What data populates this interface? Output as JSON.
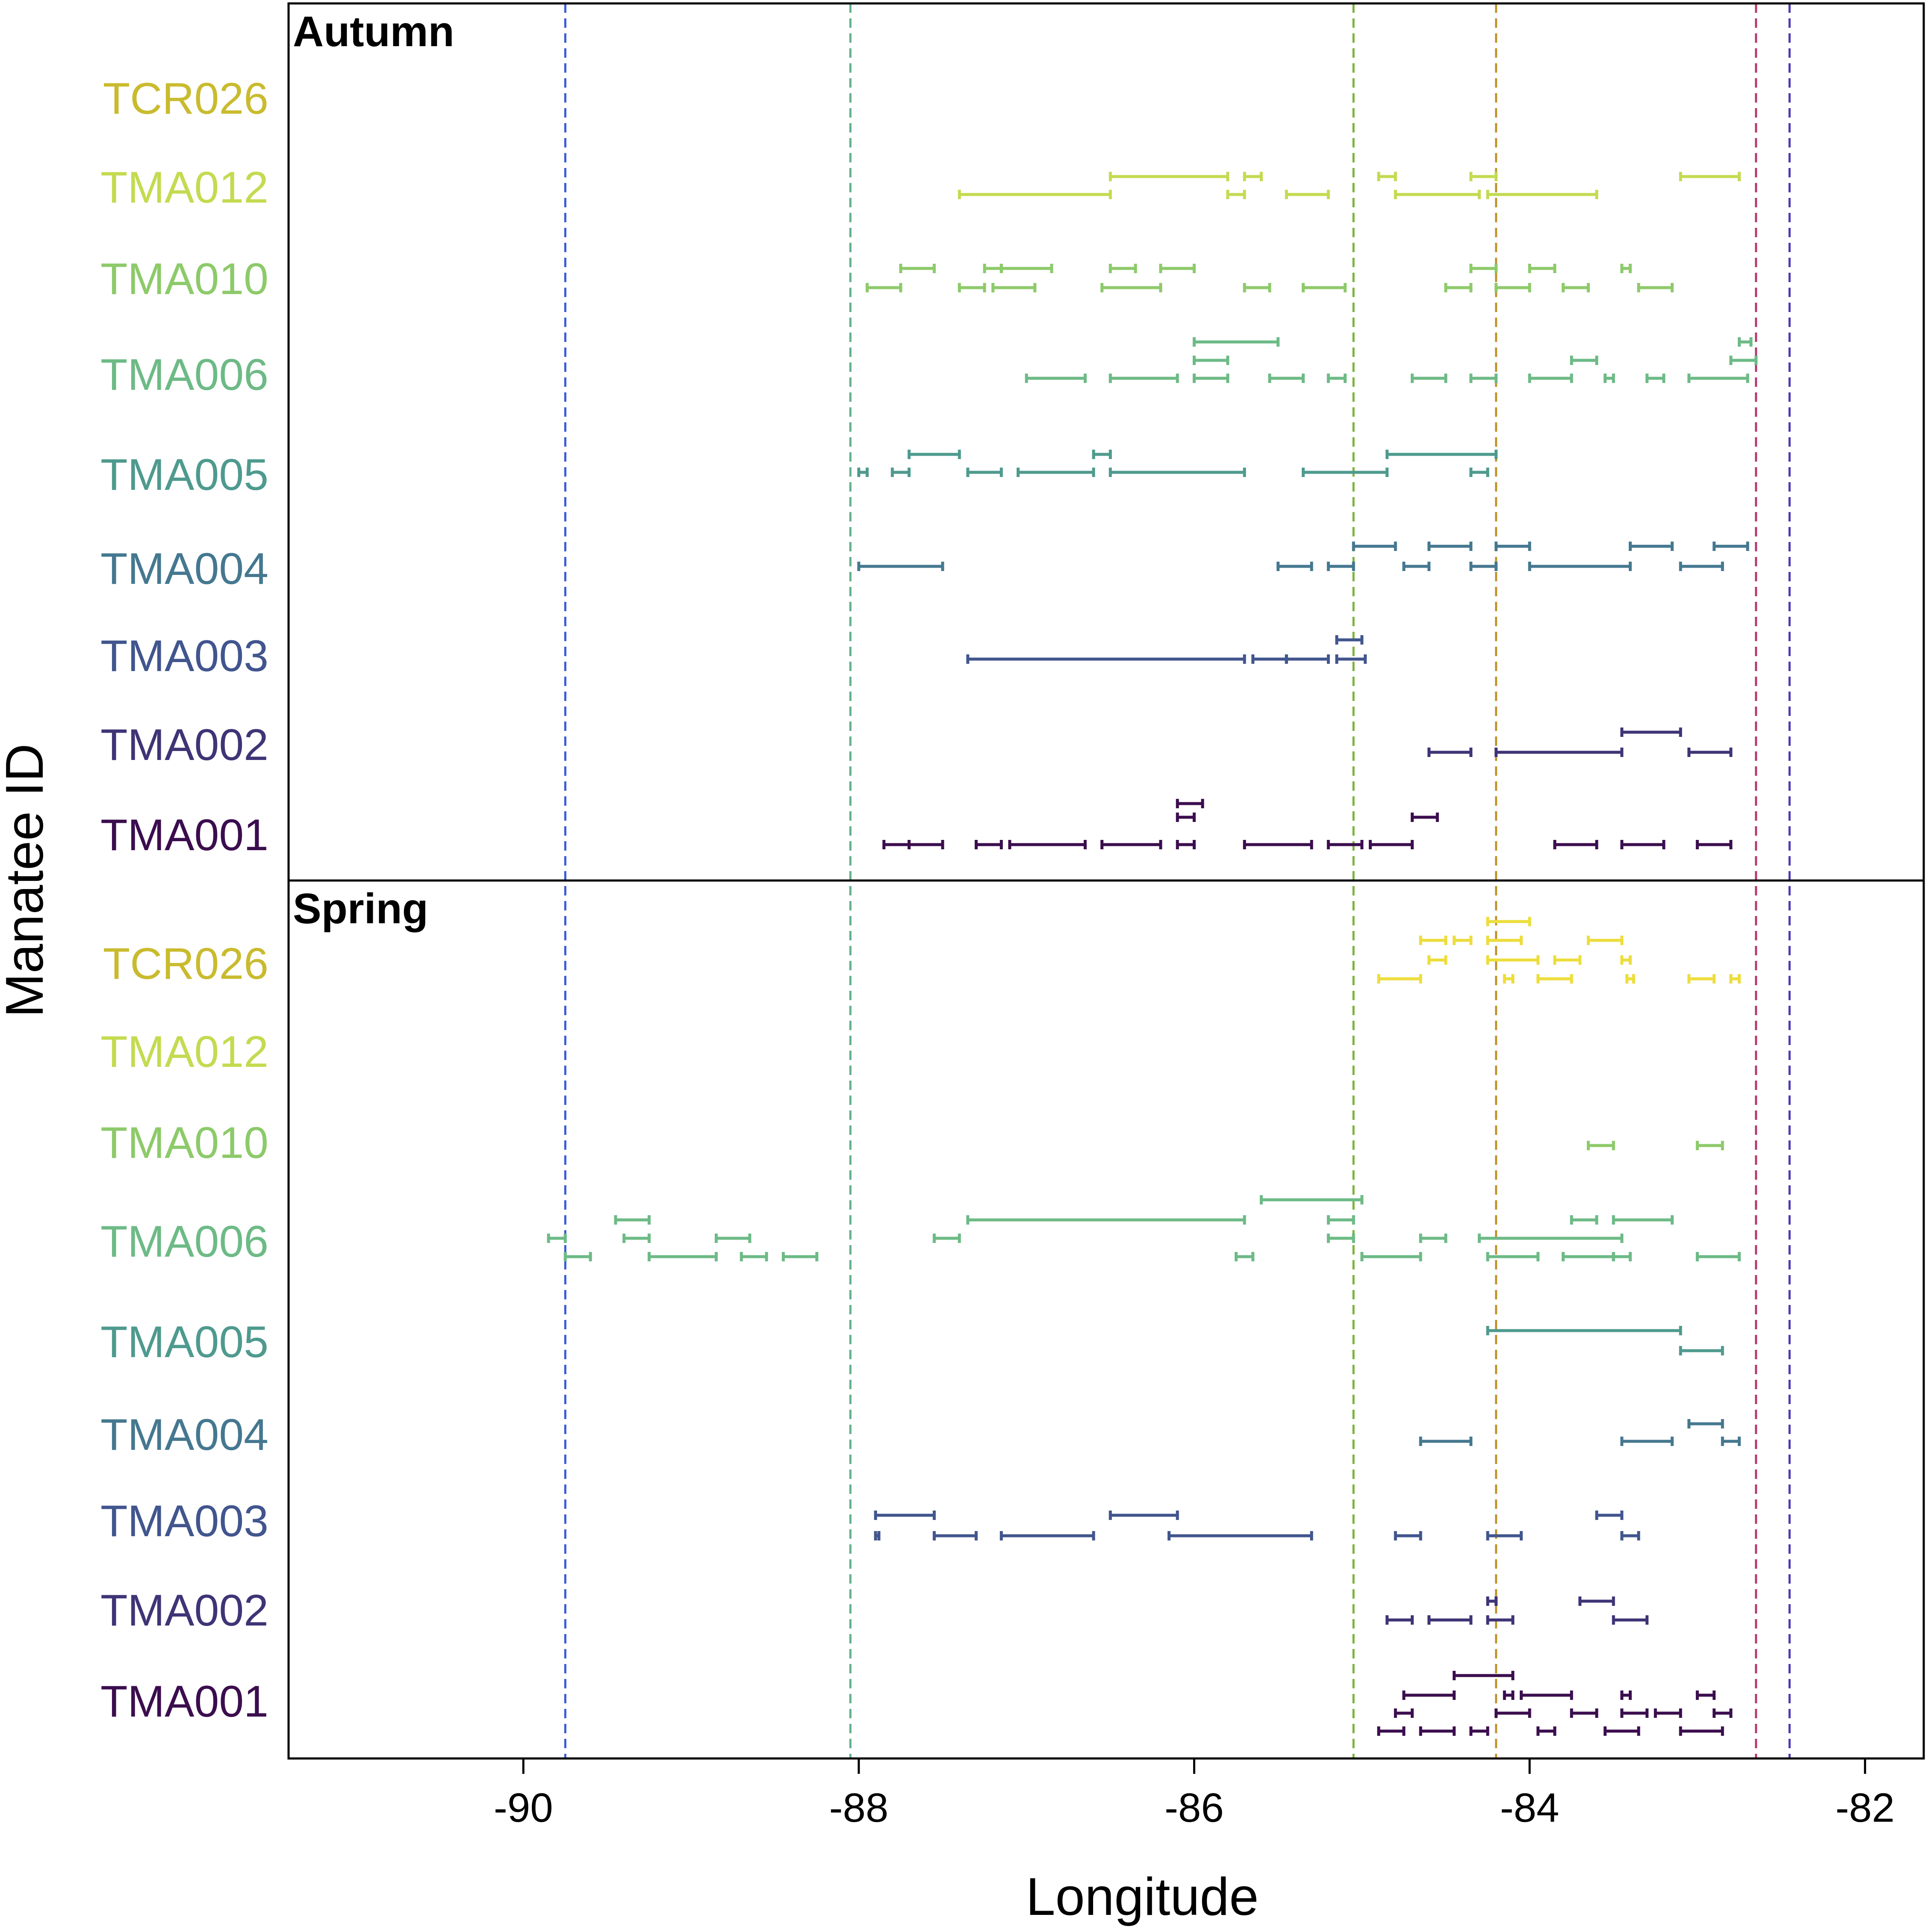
{
  "chart_data": {
    "type": "range-dot-plot",
    "xlabel": "Longitude",
    "ylabel": "Manatee ID",
    "xlim": [
      -91.4,
      -81.65
    ],
    "x_ticks": [
      -90,
      -88,
      -86,
      -84,
      -82
    ],
    "x_tick_labels": [
      "-90",
      "-88",
      "-86",
      "-84",
      "-82"
    ],
    "ids": [
      "TCR026",
      "TMA012",
      "TMA010",
      "TMA006",
      "TMA005",
      "TMA004",
      "TMA003",
      "TMA002",
      "TMA001"
    ],
    "id_colors": {
      "TCR026": "#C9BB2E",
      "TMA012": "#C3DB50",
      "TMA010": "#8DCA6A",
      "TMA006": "#6DBA86",
      "TMA005": "#4E9A8E",
      "TMA004": "#457890",
      "TMA003": "#41558E",
      "TMA002": "#3E3476",
      "TMA001": "#3B0D4E"
    },
    "segment_colors": {
      "TCR026": "#EDDD3C",
      "TMA012": "#C3DB50",
      "TMA010": "#8DCA6A",
      "TMA006": "#6DBA86",
      "TMA005": "#4E9A8E",
      "TMA004": "#457890",
      "TMA003": "#41558E",
      "TMA002": "#3E3476",
      "TMA001": "#3B0D4E"
    },
    "reference_lines": [
      {
        "x": -89.75,
        "color": "#3A5BD9"
      },
      {
        "x": -88.05,
        "color": "#62B08C"
      },
      {
        "x": -85.05,
        "color": "#7AB33A"
      },
      {
        "x": -84.2,
        "color": "#C0952F"
      },
      {
        "x": -82.65,
        "color": "#B73B6E"
      },
      {
        "x": -82.45,
        "color": "#4A38B5"
      }
    ],
    "panels": [
      {
        "title": "Autumn",
        "rows": [
          {
            "id": "TCR026",
            "segments": []
          },
          {
            "id": "TMA012",
            "segments": [
              [
                -86.5,
                -85.8,
                0
              ],
              [
                -85.7,
                -85.6,
                0
              ],
              [
                -84.9,
                -84.8,
                0
              ],
              [
                -84.35,
                -84.2,
                0
              ],
              [
                -83.1,
                -82.75,
                0
              ],
              [
                -87.4,
                -86.5,
                1
              ],
              [
                -85.8,
                -85.7,
                1
              ],
              [
                -85.45,
                -85.2,
                1
              ],
              [
                -84.8,
                -84.3,
                1
              ],
              [
                -84.25,
                -83.6,
                1
              ]
            ]
          },
          {
            "id": "TMA010",
            "segments": [
              [
                -87.75,
                -87.55,
                0
              ],
              [
                -87.25,
                -87.15,
                0
              ],
              [
                -87.15,
                -86.85,
                0
              ],
              [
                -86.5,
                -86.35,
                0
              ],
              [
                -86.2,
                -86.0,
                0
              ],
              [
                -84.35,
                -84.2,
                0
              ],
              [
                -84.0,
                -83.85,
                0
              ],
              [
                -83.45,
                -83.4,
                0
              ],
              [
                -87.95,
                -87.75,
                1
              ],
              [
                -87.4,
                -87.25,
                1
              ],
              [
                -87.2,
                -86.95,
                1
              ],
              [
                -86.55,
                -86.2,
                1
              ],
              [
                -85.7,
                -85.55,
                1
              ],
              [
                -85.35,
                -85.1,
                1
              ],
              [
                -84.5,
                -84.35,
                1
              ],
              [
                -84.2,
                -84.0,
                1
              ],
              [
                -83.8,
                -83.65,
                1
              ],
              [
                -83.35,
                -83.15,
                1
              ]
            ]
          },
          {
            "id": "TMA006",
            "segments": [
              [
                -86.0,
                -85.5,
                0
              ],
              [
                -82.75,
                -82.68,
                0
              ],
              [
                -86.0,
                -85.8,
                1
              ],
              [
                -83.75,
                -83.6,
                1
              ],
              [
                -82.8,
                -82.65,
                1
              ],
              [
                -87.0,
                -86.65,
                2
              ],
              [
                -86.5,
                -86.1,
                2
              ],
              [
                -86.0,
                -85.8,
                2
              ],
              [
                -85.55,
                -85.35,
                2
              ],
              [
                -85.2,
                -85.1,
                2
              ],
              [
                -84.7,
                -84.5,
                2
              ],
              [
                -84.35,
                -84.2,
                2
              ],
              [
                -84.0,
                -83.75,
                2
              ],
              [
                -83.55,
                -83.5,
                2
              ],
              [
                -83.3,
                -83.2,
                2
              ],
              [
                -83.05,
                -82.7,
                2
              ]
            ]
          },
          {
            "id": "TMA005",
            "segments": [
              [
                -87.7,
                -87.4,
                0
              ],
              [
                -86.6,
                -86.5,
                0
              ],
              [
                -84.85,
                -84.2,
                0
              ],
              [
                -88.0,
                -87.95,
                1
              ],
              [
                -87.8,
                -87.7,
                1
              ],
              [
                -87.35,
                -87.15,
                1
              ],
              [
                -87.05,
                -86.6,
                1
              ],
              [
                -86.5,
                -85.7,
                1
              ],
              [
                -85.35,
                -84.85,
                1
              ],
              [
                -84.35,
                -84.25,
                1
              ]
            ]
          },
          {
            "id": "TMA004",
            "segments": [
              [
                -85.05,
                -84.8,
                0
              ],
              [
                -84.6,
                -84.35,
                0
              ],
              [
                -84.2,
                -84.0,
                0
              ],
              [
                -83.4,
                -83.15,
                0
              ],
              [
                -82.9,
                -82.7,
                0
              ],
              [
                -88.0,
                -87.5,
                1
              ],
              [
                -85.5,
                -85.3,
                1
              ],
              [
                -85.2,
                -85.05,
                1
              ],
              [
                -84.75,
                -84.6,
                1
              ],
              [
                -84.35,
                -84.2,
                1
              ],
              [
                -84.0,
                -83.4,
                1
              ],
              [
                -83.1,
                -82.85,
                1
              ]
            ]
          },
          {
            "id": "TMA003",
            "segments": [
              [
                -85.15,
                -85.0,
                0
              ],
              [
                -87.35,
                -85.7,
                1
              ],
              [
                -85.65,
                -85.45,
                1
              ],
              [
                -85.45,
                -85.2,
                1
              ],
              [
                -85.15,
                -84.98,
                1
              ]
            ]
          },
          {
            "id": "TMA002",
            "segments": [
              [
                -83.45,
                -83.1,
                0
              ],
              [
                -84.6,
                -84.35,
                1
              ],
              [
                -84.2,
                -83.45,
                1
              ],
              [
                -83.05,
                -82.8,
                1
              ]
            ]
          },
          {
            "id": "TMA001",
            "segments": [
              [
                -86.1,
                -85.95,
                0
              ],
              [
                -86.1,
                -86.0,
                1
              ],
              [
                -84.7,
                -84.55,
                1
              ],
              [
                -87.85,
                -87.7,
                2
              ],
              [
                -87.7,
                -87.5,
                2
              ],
              [
                -87.3,
                -87.15,
                2
              ],
              [
                -87.1,
                -86.65,
                2
              ],
              [
                -86.55,
                -86.2,
                2
              ],
              [
                -86.1,
                -86.0,
                2
              ],
              [
                -85.7,
                -85.3,
                2
              ],
              [
                -85.2,
                -85.0,
                2
              ],
              [
                -84.95,
                -84.7,
                2
              ],
              [
                -83.85,
                -83.6,
                2
              ],
              [
                -83.45,
                -83.2,
                2
              ],
              [
                -83.0,
                -82.8,
                2
              ]
            ]
          }
        ]
      },
      {
        "title": "Spring",
        "rows": [
          {
            "id": "TCR026",
            "segments": [
              [
                -84.25,
                -84.0,
                0
              ],
              [
                -84.65,
                -84.5,
                1
              ],
              [
                -84.45,
                -84.35,
                1
              ],
              [
                -84.25,
                -84.05,
                1
              ],
              [
                -83.65,
                -83.45,
                1
              ],
              [
                -84.6,
                -84.5,
                2
              ],
              [
                -84.25,
                -83.95,
                2
              ],
              [
                -83.85,
                -83.7,
                2
              ],
              [
                -83.45,
                -83.4,
                2
              ],
              [
                -84.9,
                -84.65,
                3
              ],
              [
                -84.15,
                -84.1,
                3
              ],
              [
                -83.95,
                -83.75,
                3
              ],
              [
                -83.42,
                -83.38,
                3
              ],
              [
                -83.05,
                -82.9,
                3
              ],
              [
                -82.8,
                -82.75,
                3
              ]
            ]
          },
          {
            "id": "TMA012",
            "segments": []
          },
          {
            "id": "TMA010",
            "segments": [
              [
                -83.65,
                -83.5,
                0
              ],
              [
                -83.0,
                -82.85,
                0
              ]
            ]
          },
          {
            "id": "TMA006",
            "segments": [
              [
                -85.6,
                -85.0,
                0
              ],
              [
                -89.45,
                -89.25,
                1
              ],
              [
                -87.35,
                -85.7,
                1
              ],
              [
                -85.2,
                -85.05,
                1
              ],
              [
                -83.75,
                -83.6,
                1
              ],
              [
                -83.5,
                -83.15,
                1
              ],
              [
                -89.85,
                -89.75,
                2
              ],
              [
                -89.4,
                -89.25,
                2
              ],
              [
                -88.85,
                -88.65,
                2
              ],
              [
                -87.55,
                -87.4,
                2
              ],
              [
                -85.2,
                -85.05,
                2
              ],
              [
                -84.65,
                -84.5,
                2
              ],
              [
                -84.3,
                -83.45,
                2
              ],
              [
                -89.75,
                -89.6,
                3
              ],
              [
                -89.25,
                -88.85,
                3
              ],
              [
                -88.7,
                -88.55,
                3
              ],
              [
                -88.45,
                -88.25,
                3
              ],
              [
                -85.75,
                -85.65,
                3
              ],
              [
                -85.0,
                -84.65,
                3
              ],
              [
                -84.25,
                -83.95,
                3
              ],
              [
                -83.8,
                -83.5,
                3
              ],
              [
                -83.5,
                -83.4,
                3
              ],
              [
                -83.0,
                -82.75,
                3
              ]
            ]
          },
          {
            "id": "TMA005",
            "segments": [
              [
                -84.25,
                -83.1,
                0
              ],
              [
                -83.1,
                -82.85,
                1
              ]
            ]
          },
          {
            "id": "TMA004",
            "segments": [
              [
                -83.05,
                -82.85,
                0
              ],
              [
                -84.65,
                -84.35,
                1
              ],
              [
                -83.45,
                -83.15,
                1
              ],
              [
                -82.85,
                -82.75,
                1
              ]
            ]
          },
          {
            "id": "TMA003",
            "segments": [
              [
                -87.9,
                -87.55,
                0
              ],
              [
                -86.5,
                -86.1,
                0
              ],
              [
                -83.6,
                -83.45,
                0
              ],
              [
                -87.9,
                -87.88,
                1
              ],
              [
                -87.55,
                -87.3,
                1
              ],
              [
                -87.15,
                -86.6,
                1
              ],
              [
                -86.15,
                -85.3,
                1
              ],
              [
                -84.8,
                -84.65,
                1
              ],
              [
                -84.25,
                -84.05,
                1
              ],
              [
                -83.45,
                -83.35,
                1
              ]
            ]
          },
          {
            "id": "TMA002",
            "segments": [
              [
                -84.25,
                -84.2,
                0
              ],
              [
                -83.7,
                -83.5,
                0
              ],
              [
                -84.85,
                -84.7,
                1
              ],
              [
                -84.6,
                -84.35,
                1
              ],
              [
                -84.25,
                -84.1,
                1
              ],
              [
                -83.5,
                -83.3,
                1
              ]
            ]
          },
          {
            "id": "TMA001",
            "segments": [
              [
                -84.45,
                -84.1,
                0
              ],
              [
                -84.75,
                -84.45,
                1
              ],
              [
                -84.15,
                -84.1,
                1
              ],
              [
                -84.05,
                -83.75,
                1
              ],
              [
                -83.45,
                -83.4,
                1
              ],
              [
                -83.0,
                -82.9,
                1
              ],
              [
                -84.8,
                -84.7,
                2
              ],
              [
                -84.2,
                -84.0,
                2
              ],
              [
                -83.75,
                -83.6,
                2
              ],
              [
                -83.45,
                -83.3,
                2
              ],
              [
                -83.25,
                -83.1,
                2
              ],
              [
                -82.9,
                -82.8,
                2
              ],
              [
                -84.9,
                -84.75,
                3
              ],
              [
                -84.65,
                -84.45,
                3
              ],
              [
                -84.35,
                -84.25,
                3
              ],
              [
                -83.95,
                -83.85,
                3
              ],
              [
                -83.55,
                -83.35,
                3
              ],
              [
                -83.1,
                -82.85,
                3
              ]
            ]
          }
        ]
      }
    ]
  }
}
